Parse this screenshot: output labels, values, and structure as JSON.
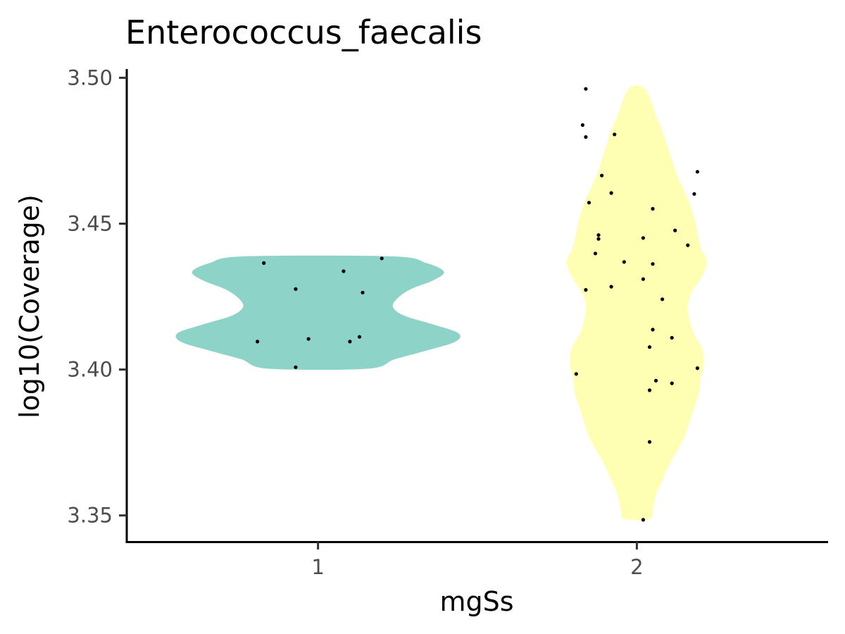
{
  "chart_data": {
    "type": "violin",
    "title": "Enterococcus_faecalis",
    "xlabel": "mgSs",
    "ylabel": "log10(Coverage)",
    "categories": [
      "1",
      "2"
    ],
    "ylim": [
      3.341,
      3.503
    ],
    "yticks": [
      3.35,
      3.4,
      3.45,
      3.5
    ],
    "ytick_labels": [
      "3.35",
      "3.40",
      "3.45",
      "3.50"
    ],
    "grid": false,
    "legend": "none",
    "series": [
      {
        "category": "1",
        "color": "#8DD3C7",
        "violin": [
          [
            3.4003,
            0.155
          ],
          [
            3.4035,
            0.24
          ],
          [
            3.4065,
            0.34
          ],
          [
            3.4095,
            0.43
          ],
          [
            3.4125,
            0.44
          ],
          [
            3.4155,
            0.36
          ],
          [
            3.4185,
            0.27
          ],
          [
            3.4215,
            0.235
          ],
          [
            3.4245,
            0.25
          ],
          [
            3.4275,
            0.29
          ],
          [
            3.4305,
            0.36
          ],
          [
            3.4335,
            0.395
          ],
          [
            3.4365,
            0.34
          ],
          [
            3.4388,
            0.23
          ]
        ],
        "points": [
          [
            0.83,
            3.4365
          ],
          [
            1.08,
            3.4337
          ],
          [
            1.2,
            3.4381
          ],
          [
            0.93,
            3.4276
          ],
          [
            1.14,
            3.4264
          ],
          [
            0.81,
            3.4096
          ],
          [
            0.97,
            3.4105
          ],
          [
            1.1,
            3.4096
          ],
          [
            1.13,
            3.4112
          ],
          [
            0.93,
            3.4008
          ]
        ]
      },
      {
        "category": "2",
        "color": "#FFFFB3",
        "violin": [
          [
            3.3488,
            0.04
          ],
          [
            3.352,
            0.05
          ],
          [
            3.357,
            0.06
          ],
          [
            3.362,
            0.08
          ],
          [
            3.367,
            0.1
          ],
          [
            3.372,
            0.125
          ],
          [
            3.377,
            0.15
          ],
          [
            3.382,
            0.165
          ],
          [
            3.387,
            0.18
          ],
          [
            3.392,
            0.195
          ],
          [
            3.397,
            0.2
          ],
          [
            3.402,
            0.21
          ],
          [
            3.407,
            0.205
          ],
          [
            3.412,
            0.18
          ],
          [
            3.417,
            0.165
          ],
          [
            3.422,
            0.16
          ],
          [
            3.427,
            0.175
          ],
          [
            3.432,
            0.205
          ],
          [
            3.437,
            0.22
          ],
          [
            3.442,
            0.2
          ],
          [
            3.447,
            0.19
          ],
          [
            3.452,
            0.18
          ],
          [
            3.457,
            0.165
          ],
          [
            3.462,
            0.145
          ],
          [
            3.467,
            0.125
          ],
          [
            3.472,
            0.11
          ],
          [
            3.477,
            0.095
          ],
          [
            3.482,
            0.08
          ],
          [
            3.487,
            0.06
          ],
          [
            3.492,
            0.045
          ],
          [
            3.4968,
            0.02
          ]
        ],
        "points": [
          [
            1.84,
            3.4962
          ],
          [
            1.83,
            3.4838
          ],
          [
            1.84,
            3.4797
          ],
          [
            1.93,
            3.4806
          ],
          [
            1.89,
            3.4665
          ],
          [
            1.92,
            3.4605
          ],
          [
            2.19,
            3.4678
          ],
          [
            2.18,
            3.4602
          ],
          [
            1.85,
            3.4572
          ],
          [
            2.05,
            3.4551
          ],
          [
            1.88,
            3.4461
          ],
          [
            1.88,
            3.4448
          ],
          [
            1.87,
            3.4398
          ],
          [
            2.12,
            3.4477
          ],
          [
            2.16,
            3.4426
          ],
          [
            2.02,
            3.4451
          ],
          [
            1.96,
            3.4369
          ],
          [
            2.05,
            3.4362
          ],
          [
            2.02,
            3.431
          ],
          [
            1.84,
            3.4273
          ],
          [
            1.92,
            3.4284
          ],
          [
            2.08,
            3.4241
          ],
          [
            2.05,
            3.4137
          ],
          [
            2.11,
            3.4109
          ],
          [
            2.04,
            3.4077
          ],
          [
            2.19,
            3.4005
          ],
          [
            1.81,
            3.3985
          ],
          [
            2.06,
            3.3962
          ],
          [
            2.11,
            3.3953
          ],
          [
            2.04,
            3.3929
          ],
          [
            2.04,
            3.3752
          ],
          [
            2.02,
            3.3485
          ]
        ]
      }
    ]
  }
}
